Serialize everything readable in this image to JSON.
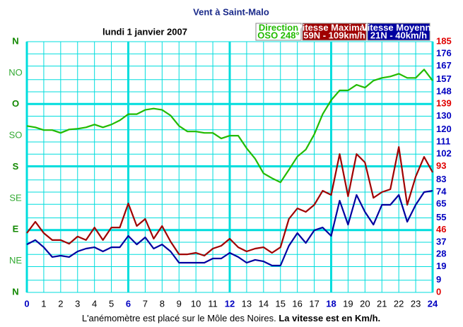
{
  "chart_data": {
    "type": "line",
    "title": "Vent à Saint-Malo",
    "subtitle": "lundi 1 janvier 2007",
    "note": "L'anémomètre est placé sur le Môle des Noires.",
    "note_bold": "La vitesse est en Km/h.",
    "x": [
      0,
      0.5,
      1,
      1.5,
      2,
      2.5,
      3,
      3.5,
      4,
      4.5,
      5,
      5.5,
      6,
      6.5,
      7,
      7.5,
      8,
      8.5,
      9,
      9.5,
      10,
      10.5,
      11,
      11.5,
      12,
      12.5,
      13,
      13.5,
      14,
      14.5,
      15,
      15.5,
      16,
      16.5,
      17,
      17.5,
      18,
      18.5,
      19,
      19.5,
      20,
      20.5,
      21,
      21.5,
      22,
      22.5,
      23,
      23.5,
      24
    ],
    "xlim": [
      0,
      24
    ],
    "xticks": [
      0,
      1,
      2,
      3,
      4,
      5,
      6,
      7,
      8,
      9,
      10,
      11,
      12,
      13,
      14,
      15,
      16,
      17,
      18,
      19,
      20,
      21,
      22,
      23,
      24
    ],
    "ylim": [
      0,
      360
    ],
    "yticks": [
      {
        "value": 0,
        "label": "N"
      },
      {
        "value": 45,
        "label": "NE"
      },
      {
        "value": 90,
        "label": "E"
      },
      {
        "value": 135,
        "label": "SE"
      },
      {
        "value": 180,
        "label": "S"
      },
      {
        "value": 225,
        "label": "SO"
      },
      {
        "value": 270,
        "label": "O"
      },
      {
        "value": 315,
        "label": "NO"
      },
      {
        "value": 360,
        "label": "N"
      }
    ],
    "y2lim": [
      0,
      185
    ],
    "y2ticks": [
      0,
      9,
      19,
      28,
      37,
      46,
      55,
      65,
      74,
      83,
      93,
      102,
      111,
      120,
      130,
      139,
      148,
      157,
      167,
      176,
      185
    ],
    "grid": true,
    "series": [
      {
        "name": "Direction",
        "summary": "OSO 248°",
        "color": "#22bb00",
        "axis": "y",
        "values": [
          239,
          237,
          233,
          233,
          229,
          234,
          235,
          237,
          241,
          237,
          241,
          247,
          256,
          256,
          262,
          264,
          262,
          254,
          239,
          231,
          231,
          229,
          229,
          221,
          225,
          225,
          207,
          192,
          171,
          164,
          158,
          176,
          195,
          205,
          227,
          256,
          276,
          290,
          290,
          298,
          294,
          304,
          308,
          310,
          314,
          308,
          308,
          320,
          304
        ]
      },
      {
        "name": "Vitesse Maximale",
        "summary": "59N - 109km/h",
        "color": "#a00000",
        "axis": "y2",
        "values": [
          43.8,
          52.1,
          43.8,
          38.6,
          38.6,
          35.9,
          41.2,
          38.6,
          47.9,
          38.6,
          47.9,
          47.9,
          65.6,
          49.0,
          54.2,
          39.6,
          49.0,
          37.5,
          28.1,
          28.1,
          29.2,
          27.1,
          32.3,
          34.4,
          39.6,
          33.3,
          30.2,
          32.3,
          33.3,
          29.2,
          33.3,
          54.2,
          62.0,
          59.4,
          64.6,
          75.0,
          71.9,
          102.1,
          70.9,
          102.1,
          95.9,
          69.8,
          74.0,
          76.1,
          107.3,
          64.6,
          85.4,
          100.0,
          88.6
        ]
      },
      {
        "name": "Vitesse Moyenne",
        "summary": "21N - 40km/h",
        "color": "#0000a0",
        "axis": "y2",
        "values": [
          35.4,
          38.6,
          33.3,
          26.1,
          27.1,
          26.1,
          30.2,
          32.3,
          33.3,
          30.2,
          33.3,
          33.3,
          41.7,
          35.4,
          40.6,
          32.3,
          35.4,
          30.2,
          21.9,
          21.9,
          21.9,
          21.9,
          25.0,
          25.0,
          29.2,
          26.1,
          21.9,
          24.0,
          22.9,
          19.8,
          19.8,
          34.4,
          43.8,
          36.5,
          45.8,
          47.9,
          41.7,
          67.7,
          50.0,
          71.9,
          59.4,
          50.0,
          64.6,
          64.6,
          71.9,
          52.1,
          64.6,
          74.0,
          75.0
        ]
      }
    ]
  }
}
